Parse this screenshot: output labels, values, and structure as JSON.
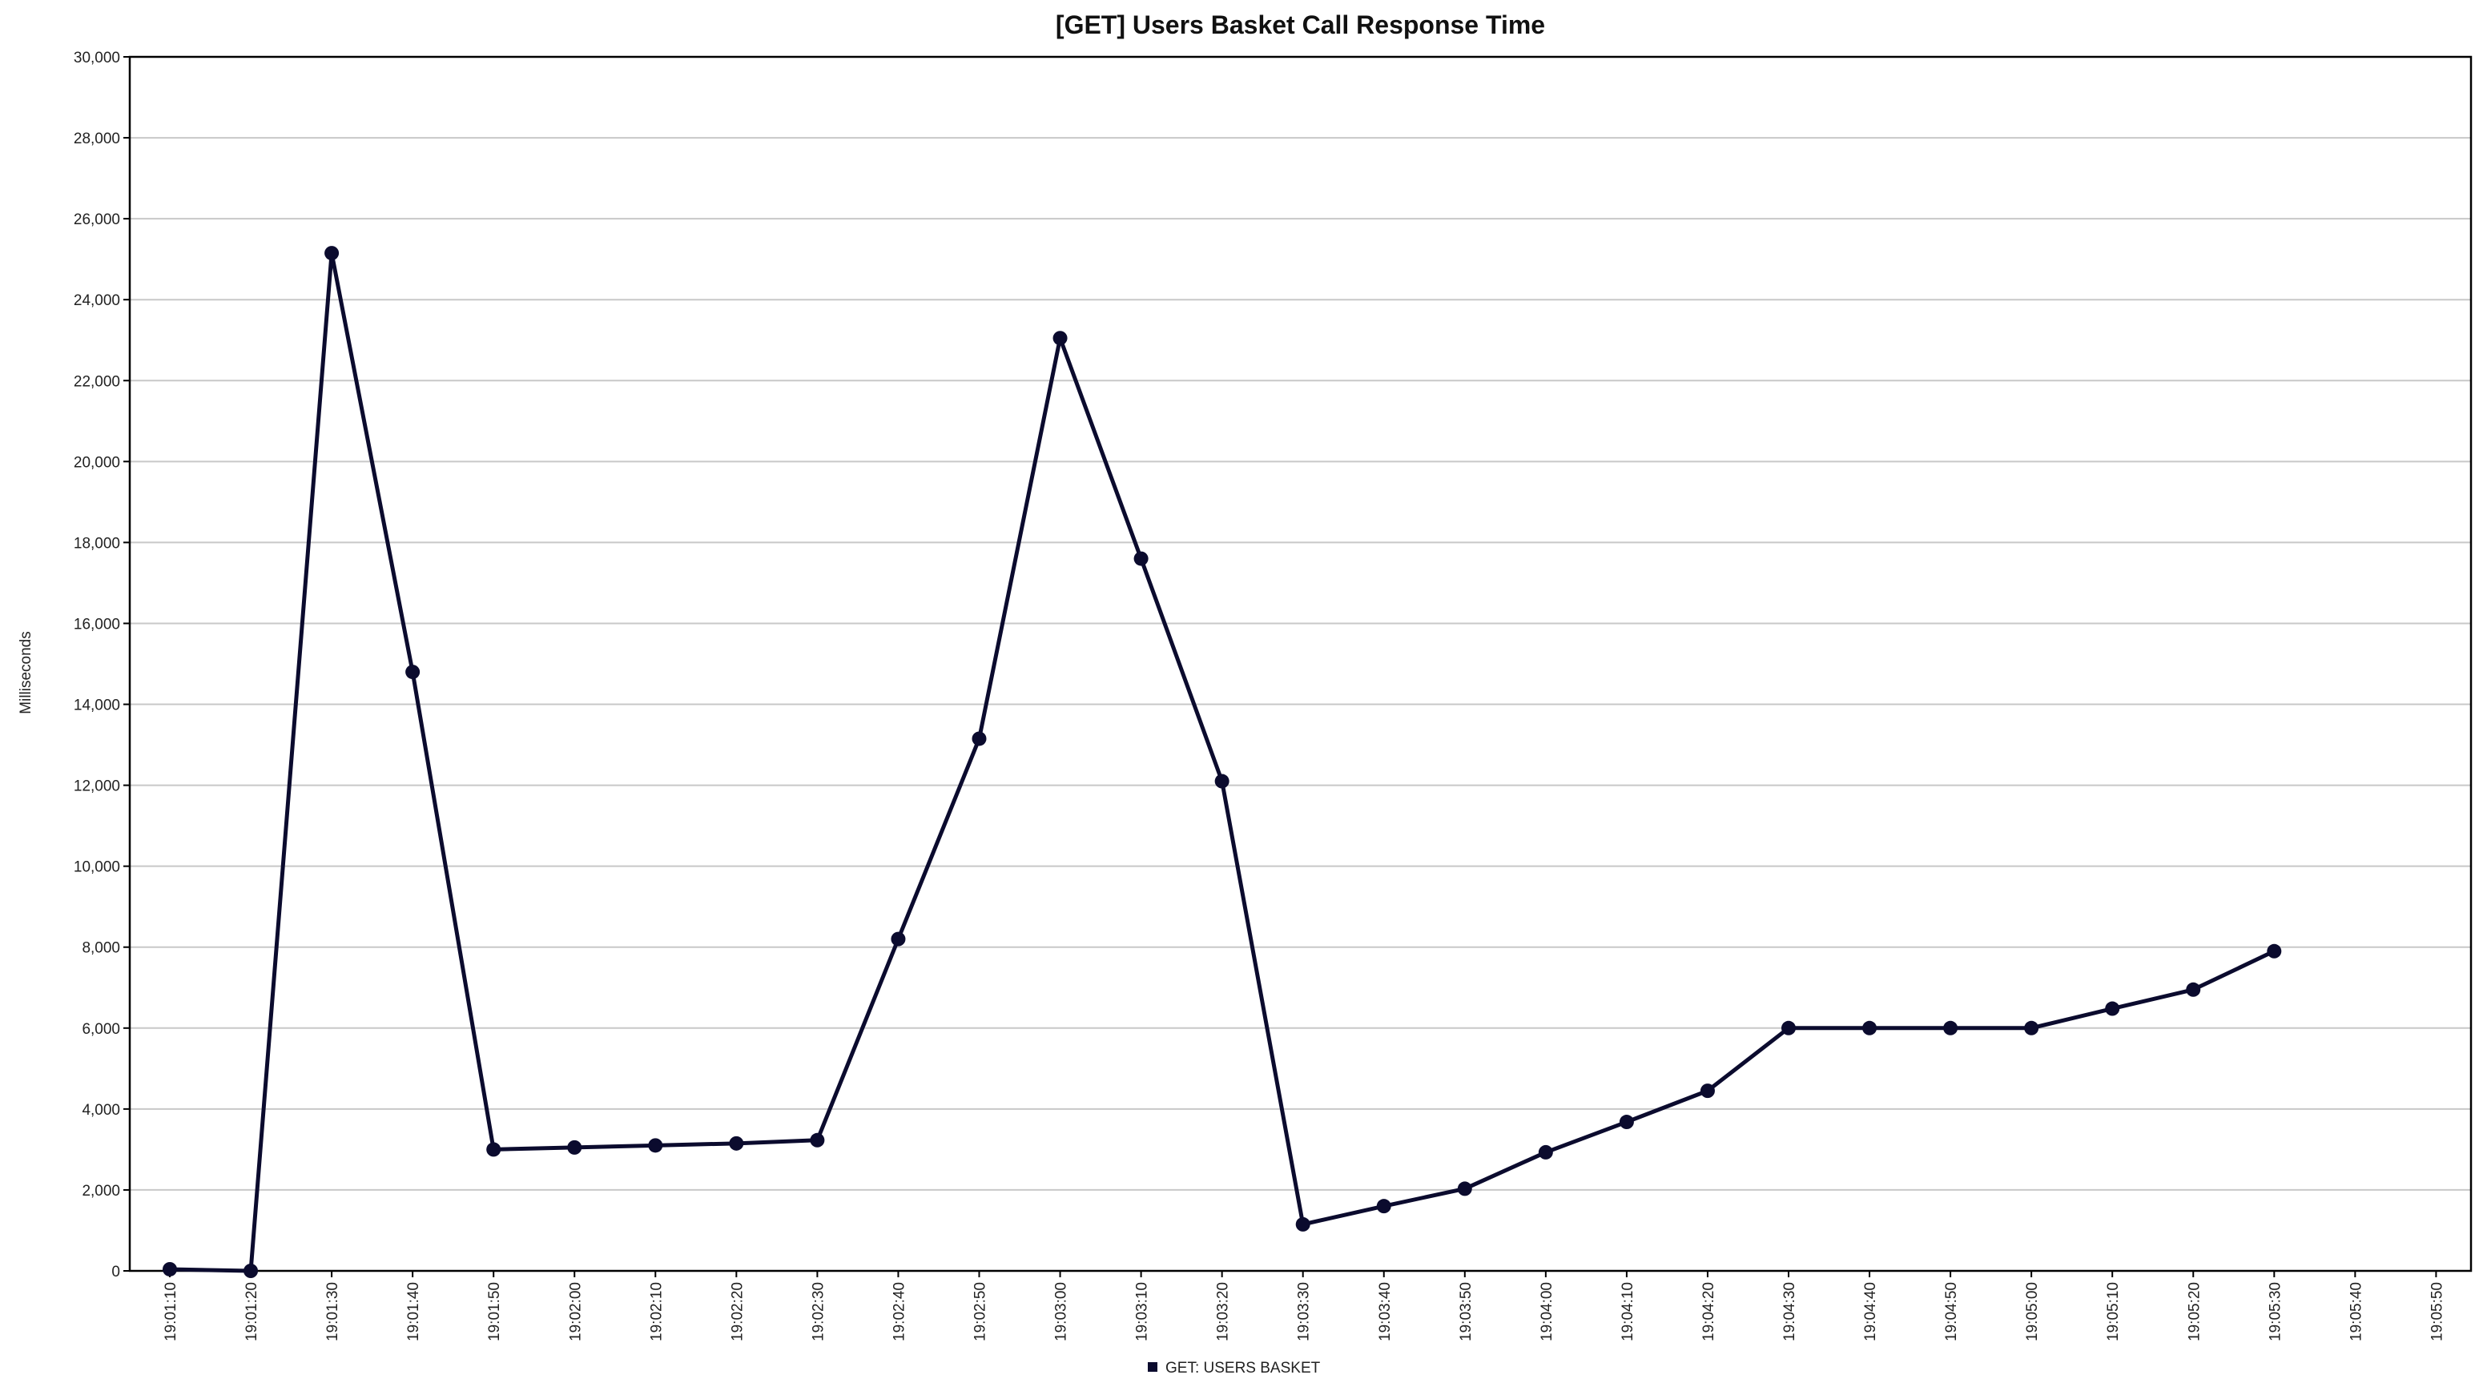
{
  "chart_data": {
    "type": "line",
    "title": "[GET] Users Basket Call Response Time",
    "xlabel": "",
    "ylabel": "Milliseconds",
    "ylim": [
      0,
      30000
    ],
    "yticks": [
      0,
      2000,
      4000,
      6000,
      8000,
      10000,
      12000,
      14000,
      16000,
      18000,
      20000,
      22000,
      24000,
      26000,
      28000,
      30000
    ],
    "ytick_labels": [
      "0",
      "2,000",
      "4,000",
      "6,000",
      "8,000",
      "10,000",
      "12,000",
      "14,000",
      "16,000",
      "18,000",
      "20,000",
      "22,000",
      "24,000",
      "26,000",
      "28,000",
      "30,000"
    ],
    "categories": [
      "19:01:10",
      "19:01:20",
      "19:01:30",
      "19:01:40",
      "19:01:50",
      "19:02:00",
      "19:02:10",
      "19:02:20",
      "19:02:30",
      "19:02:40",
      "19:02:50",
      "19:03:00",
      "19:03:10",
      "19:03:20",
      "19:03:30",
      "19:03:40",
      "19:03:50",
      "19:04:00",
      "19:04:10",
      "19:04:20",
      "19:04:30",
      "19:04:40",
      "19:04:50",
      "19:05:00",
      "19:05:10",
      "19:05:20",
      "19:05:30",
      "19:05:40",
      "19:05:50"
    ],
    "grid": true,
    "legend_position": "bottom-center",
    "series": [
      {
        "name": "GET: USERS BASKET",
        "color": "#0b0b2e",
        "values": [
          40,
          0,
          25150,
          14800,
          3000,
          3050,
          3100,
          3150,
          3230,
          8200,
          13150,
          23050,
          17600,
          12100,
          1150,
          1600,
          2030,
          2930,
          3680,
          4450,
          6000,
          6000,
          6000,
          6000,
          6480,
          6950,
          7900,
          null,
          null
        ]
      }
    ]
  }
}
